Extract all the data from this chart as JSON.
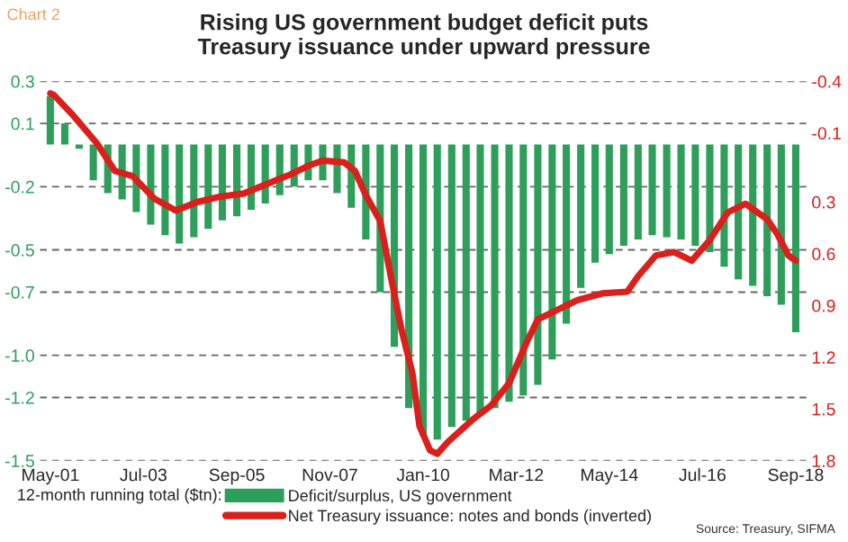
{
  "chart_data": {
    "type": "bar",
    "title": "Rising US government budget deficit puts\nTreasury issuance under upward pressure",
    "legend_title": "12-month running total ($tn):",
    "annotations": [
      "Chart 2",
      "Source: Treasury, SIFMA"
    ],
    "x": [
      "2001-05",
      "2001-09",
      "2002-01",
      "2002-05",
      "2002-09",
      "2003-01",
      "2003-05",
      "2003-09",
      "2004-01",
      "2004-05",
      "2004-09",
      "2005-01",
      "2005-05",
      "2005-09",
      "2006-01",
      "2006-05",
      "2006-09",
      "2007-01",
      "2007-05",
      "2007-09",
      "2008-01",
      "2008-05",
      "2008-09",
      "2009-01",
      "2009-05",
      "2009-09",
      "2010-01",
      "2010-05",
      "2010-09",
      "2011-01",
      "2011-05",
      "2011-09",
      "2012-01",
      "2012-05",
      "2012-09",
      "2013-01",
      "2013-05",
      "2013-09",
      "2014-01",
      "2014-05",
      "2014-09",
      "2015-01",
      "2015-05",
      "2015-09",
      "2016-01",
      "2016-05",
      "2016-09",
      "2017-01",
      "2017-05",
      "2017-09",
      "2018-01",
      "2018-05",
      "2018-09"
    ],
    "series": [
      {
        "name": "Deficit/surplus, US government",
        "color": "#2e9e5b",
        "values": [
          0.23,
          0.1,
          -0.02,
          -0.17,
          -0.23,
          -0.26,
          -0.32,
          -0.38,
          -0.43,
          -0.47,
          -0.44,
          -0.4,
          -0.36,
          -0.34,
          -0.31,
          -0.28,
          -0.24,
          -0.2,
          -0.17,
          -0.17,
          -0.23,
          -0.3,
          -0.45,
          -0.7,
          -0.96,
          -1.25,
          -1.38,
          -1.4,
          -1.34,
          -1.31,
          -1.28,
          -1.25,
          -1.22,
          -1.19,
          -1.14,
          -1.02,
          -0.85,
          -0.68,
          -0.56,
          -0.52,
          -0.48,
          -0.45,
          -0.43,
          -0.44,
          -0.45,
          -0.48,
          -0.51,
          -0.58,
          -0.64,
          -0.67,
          -0.72,
          -0.76,
          -0.89
        ]
      },
      {
        "name": "Net Treasury issuance: notes and bonds (inverted)",
        "type": "line",
        "axis": "y2",
        "color": "#d9201c",
        "x": [
          "2001-05",
          "2001-06",
          "2001-11",
          "2002-06",
          "2002-11",
          "2003-04",
          "2003-10",
          "2004-04",
          "2004-10",
          "2005-04",
          "2005-11",
          "2006-06",
          "2006-12",
          "2007-05",
          "2007-09",
          "2008-03",
          "2008-06",
          "2008-09",
          "2009-01",
          "2009-04",
          "2009-07",
          "2009-10",
          "2009-12",
          "2010-03",
          "2010-05",
          "2010-08",
          "2011-03",
          "2011-08",
          "2012-01",
          "2012-06",
          "2012-09",
          "2013-03",
          "2013-08",
          "2014-03",
          "2014-10",
          "2015-01",
          "2015-06",
          "2015-11",
          "2016-04",
          "2016-09",
          "2017-02",
          "2017-07",
          "2018-01",
          "2018-04",
          "2018-07",
          "2018-09"
        ],
        "values": [
          -0.33,
          -0.32,
          -0.21,
          -0.04,
          0.12,
          0.15,
          0.28,
          0.35,
          0.3,
          0.27,
          0.25,
          0.19,
          0.14,
          0.09,
          0.06,
          0.07,
          0.12,
          0.26,
          0.41,
          0.73,
          1.04,
          1.29,
          1.6,
          1.74,
          1.76,
          1.69,
          1.56,
          1.48,
          1.35,
          1.11,
          0.98,
          0.92,
          0.87,
          0.83,
          0.82,
          0.73,
          0.61,
          0.59,
          0.64,
          0.52,
          0.36,
          0.31,
          0.4,
          0.49,
          0.61,
          0.64
        ]
      }
    ],
    "xlim": [
      "2001-02",
      "2018-12"
    ],
    "xticks": [
      {
        "value": "2001-05",
        "label": "May-01"
      },
      {
        "value": "2003-07",
        "label": "Jul-03"
      },
      {
        "value": "2005-09",
        "label": "Sep-05"
      },
      {
        "value": "2007-11",
        "label": "Nov-07"
      },
      {
        "value": "2010-01",
        "label": "Jan-10"
      },
      {
        "value": "2012-03",
        "label": "Mar-12"
      },
      {
        "value": "2014-05",
        "label": "May-14"
      },
      {
        "value": "2016-07",
        "label": "Jul-16"
      },
      {
        "value": "2018-09",
        "label": "Sep-18"
      }
    ],
    "ylim": [
      -1.5,
      0.3
    ],
    "yticks": [
      {
        "value": 0.3,
        "label": "0.3"
      },
      0.1,
      -0.2,
      -0.5,
      -0.7,
      {
        "value": -1.0,
        "label": "-1.0"
      },
      -1.2,
      {
        "value": -1.5,
        "label": "-1.5"
      }
    ],
    "y2lim": [
      1.8,
      -0.4
    ],
    "y2ticks": [
      {
        "value": -0.4,
        "label": "-0.4"
      },
      -0.1,
      0.3,
      0.6,
      0.9,
      1.2,
      1.5,
      {
        "value": 1.8,
        "label": "1.8"
      }
    ],
    "grid": "y",
    "legend": "bottom"
  }
}
